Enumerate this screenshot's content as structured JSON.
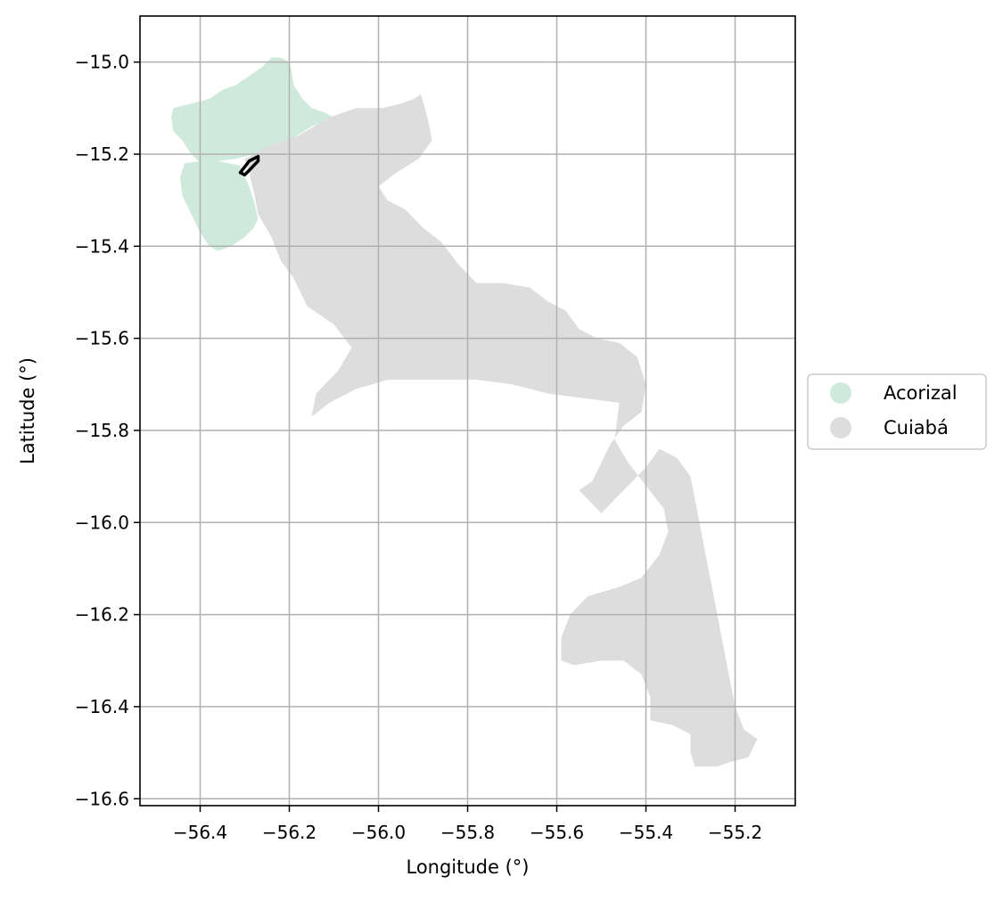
{
  "chart_data": {
    "type": "map",
    "xlabel": "Longitude (°)",
    "ylabel": "Latitude (°)",
    "xlim": [
      -56.535,
      -55.065
    ],
    "ylim": [
      -16.615,
      -14.9
    ],
    "xticks": [
      -56.4,
      -56.2,
      -56.0,
      -55.8,
      -55.6,
      -55.4,
      -55.2
    ],
    "yticks": [
      -15.0,
      -15.2,
      -15.4,
      -15.6,
      -15.8,
      -16.0,
      -16.2,
      -16.4,
      -16.6
    ],
    "xtick_labels": [
      "−56.4",
      "−56.2",
      "−56.0",
      "−55.8",
      "−55.6",
      "−55.4",
      "−55.2"
    ],
    "ytick_labels": [
      "−15.0",
      "−15.2",
      "−15.4",
      "−15.6",
      "−15.8",
      "−16.0",
      "−16.2",
      "−16.4",
      "−16.6"
    ],
    "grid": true,
    "legend_position": "center-right, outside plot",
    "regions": [
      {
        "name": "Acorizal",
        "color": "#cfeadd",
        "polygons": [
          [
            [
              -56.46,
              -15.1
            ],
            [
              -56.42,
              -15.09
            ],
            [
              -56.38,
              -15.08
            ],
            [
              -56.35,
              -15.06
            ],
            [
              -56.32,
              -15.05
            ],
            [
              -56.29,
              -15.03
            ],
            [
              -56.26,
              -15.01
            ],
            [
              -56.24,
              -14.99
            ],
            [
              -56.22,
              -14.99
            ],
            [
              -56.2,
              -15.0
            ],
            [
              -56.195,
              -15.02
            ],
            [
              -56.19,
              -15.05
            ],
            [
              -56.17,
              -15.08
            ],
            [
              -56.15,
              -15.1
            ],
            [
              -56.12,
              -15.11
            ],
            [
              -56.1,
              -15.12
            ],
            [
              -56.15,
              -15.14
            ],
            [
              -56.2,
              -15.17
            ],
            [
              -56.24,
              -15.19
            ],
            [
              -56.28,
              -15.2
            ],
            [
              -56.32,
              -15.21
            ],
            [
              -56.36,
              -15.215
            ],
            [
              -56.4,
              -15.22
            ],
            [
              -56.42,
              -15.2
            ],
            [
              -56.44,
              -15.17
            ],
            [
              -56.46,
              -15.15
            ],
            [
              -56.465,
              -15.12
            ]
          ],
          [
            [
              -56.435,
              -15.22
            ],
            [
              -56.4,
              -15.215
            ],
            [
              -56.36,
              -15.215
            ],
            [
              -56.31,
              -15.225
            ],
            [
              -56.29,
              -15.27
            ],
            [
              -56.28,
              -15.3
            ],
            [
              -56.27,
              -15.34
            ],
            [
              -56.28,
              -15.36
            ],
            [
              -56.3,
              -15.38
            ],
            [
              -56.33,
              -15.4
            ],
            [
              -56.36,
              -15.41
            ],
            [
              -56.38,
              -15.4
            ],
            [
              -56.4,
              -15.37
            ],
            [
              -56.42,
              -15.33
            ],
            [
              -56.44,
              -15.29
            ],
            [
              -56.445,
              -15.25
            ]
          ]
        ]
      },
      {
        "name": "Cuiabá",
        "color": "#dddddd",
        "polygons": [
          [
            [
              -56.3,
              -15.21
            ],
            [
              -56.24,
              -15.18
            ],
            [
              -56.18,
              -15.16
            ],
            [
              -56.11,
              -15.12
            ],
            [
              -56.05,
              -15.1
            ],
            [
              -55.99,
              -15.1
            ],
            [
              -55.95,
              -15.09
            ],
            [
              -55.92,
              -15.08
            ],
            [
              -55.905,
              -15.07
            ],
            [
              -55.89,
              -15.12
            ],
            [
              -55.88,
              -15.17
            ],
            [
              -55.91,
              -15.21
            ],
            [
              -55.96,
              -15.24
            ],
            [
              -56.0,
              -15.27
            ],
            [
              -55.98,
              -15.3
            ],
            [
              -55.94,
              -15.32
            ],
            [
              -55.9,
              -15.36
            ],
            [
              -55.86,
              -15.39
            ],
            [
              -55.82,
              -15.44
            ],
            [
              -55.78,
              -15.48
            ],
            [
              -55.72,
              -15.48
            ],
            [
              -55.66,
              -15.49
            ],
            [
              -55.62,
              -15.52
            ],
            [
              -55.58,
              -15.54
            ],
            [
              -55.55,
              -15.58
            ],
            [
              -55.51,
              -15.6
            ],
            [
              -55.46,
              -15.61
            ],
            [
              -55.42,
              -15.64
            ],
            [
              -55.4,
              -15.7
            ],
            [
              -55.41,
              -15.76
            ],
            [
              -55.45,
              -15.79
            ],
            [
              -55.48,
              -15.83
            ],
            [
              -55.5,
              -15.87
            ],
            [
              -55.52,
              -15.91
            ],
            [
              -55.55,
              -15.93
            ],
            [
              -55.52,
              -15.96
            ],
            [
              -55.5,
              -15.98
            ],
            [
              -55.47,
              -15.95
            ],
            [
              -55.44,
              -15.92
            ],
            [
              -55.4,
              -15.88
            ],
            [
              -55.37,
              -15.84
            ],
            [
              -55.33,
              -15.86
            ],
            [
              -55.3,
              -15.9
            ],
            [
              -55.28,
              -16.0
            ],
            [
              -55.26,
              -16.1
            ],
            [
              -55.24,
              -16.2
            ],
            [
              -55.22,
              -16.3
            ],
            [
              -55.2,
              -16.4
            ],
            [
              -55.18,
              -16.45
            ],
            [
              -55.15,
              -16.47
            ],
            [
              -55.17,
              -16.51
            ],
            [
              -55.21,
              -16.52
            ],
            [
              -55.24,
              -16.53
            ],
            [
              -55.29,
              -16.53
            ],
            [
              -55.3,
              -16.5
            ],
            [
              -55.3,
              -16.46
            ],
            [
              -55.34,
              -16.44
            ],
            [
              -55.39,
              -16.43
            ],
            [
              -55.39,
              -16.38
            ],
            [
              -55.41,
              -16.33
            ],
            [
              -55.45,
              -16.3
            ],
            [
              -55.5,
              -16.3
            ],
            [
              -55.56,
              -16.31
            ],
            [
              -55.59,
              -16.3
            ],
            [
              -55.59,
              -16.25
            ],
            [
              -55.57,
              -16.2
            ],
            [
              -55.53,
              -16.16
            ],
            [
              -55.46,
              -16.14
            ],
            [
              -55.41,
              -16.12
            ],
            [
              -55.37,
              -16.07
            ],
            [
              -55.35,
              -16.02
            ],
            [
              -55.36,
              -15.97
            ],
            [
              -55.4,
              -15.92
            ],
            [
              -55.44,
              -15.87
            ],
            [
              -55.47,
              -15.82
            ],
            [
              -55.46,
              -15.74
            ],
            [
              -55.54,
              -15.73
            ],
            [
              -55.62,
              -15.72
            ],
            [
              -55.7,
              -15.7
            ],
            [
              -55.78,
              -15.69
            ],
            [
              -55.9,
              -15.69
            ],
            [
              -55.98,
              -15.69
            ],
            [
              -56.05,
              -15.71
            ],
            [
              -56.11,
              -15.74
            ],
            [
              -56.15,
              -15.77
            ],
            [
              -56.14,
              -15.72
            ],
            [
              -56.09,
              -15.67
            ],
            [
              -56.06,
              -15.62
            ],
            [
              -56.1,
              -15.57
            ],
            [
              -56.16,
              -15.53
            ],
            [
              -56.19,
              -15.47
            ],
            [
              -56.22,
              -15.43
            ],
            [
              -56.24,
              -15.38
            ],
            [
              -56.27,
              -15.33
            ],
            [
              -56.28,
              -15.28
            ],
            [
              -56.29,
              -15.24
            ]
          ]
        ]
      }
    ],
    "highlight_outline": [
      [
        -56.31,
        -15.24
      ],
      [
        -56.29,
        -15.215
      ],
      [
        -56.27,
        -15.205
      ],
      [
        -56.27,
        -15.215
      ],
      [
        -56.29,
        -15.235
      ],
      [
        -56.3,
        -15.245
      ]
    ]
  },
  "legend": {
    "items": [
      {
        "label": "Acorizal",
        "color": "#cfeadd"
      },
      {
        "label": "Cuiabá",
        "color": "#dddddd"
      }
    ]
  }
}
